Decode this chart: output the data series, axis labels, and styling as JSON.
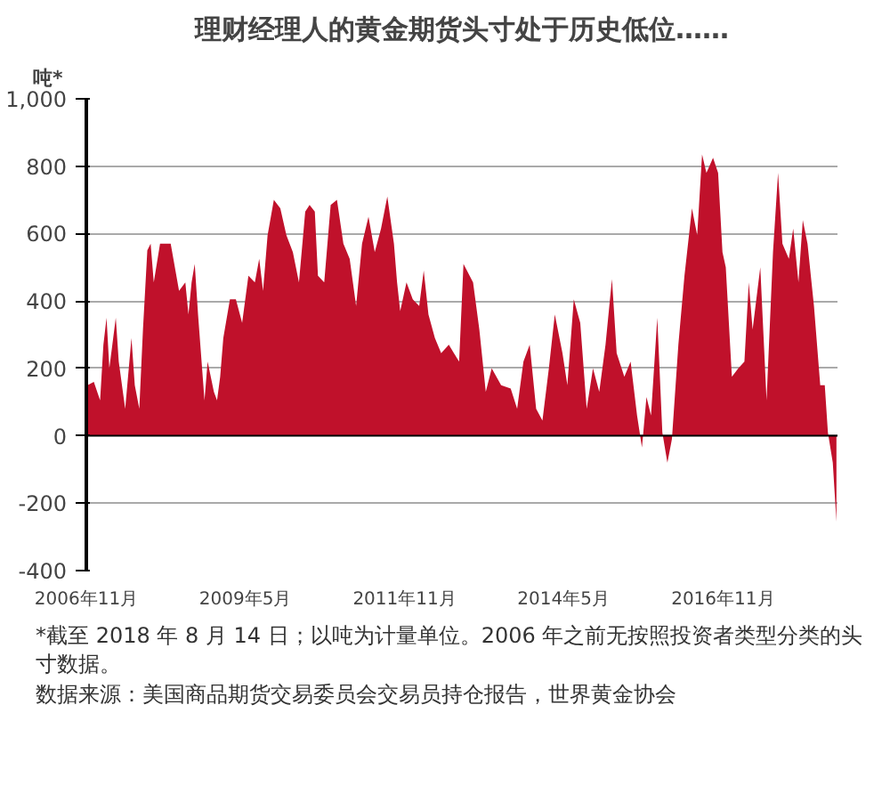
{
  "chart_data": {
    "type": "area",
    "title": "理财经理人的黄金期货头寸处于历史低位……",
    "ylabel": "吨*",
    "x": [
      "2006-11-08",
      "2006-12-14",
      "2007-01-19",
      "2007-02-07",
      "2007-02-25",
      "2007-03-13",
      "2007-04-19",
      "2007-05-06",
      "2007-06-12",
      "2007-07-18",
      "2007-08-06",
      "2007-09-01",
      "2007-09-22",
      "2007-10-17",
      "2007-11-05",
      "2007-11-23",
      "2007-12-29",
      "2008-02-05",
      "2008-02-28",
      "2008-04-16",
      "2008-05-22",
      "2008-06-09",
      "2008-06-27",
      "2008-07-15",
      "2008-08-03",
      "2008-09-09",
      "2008-09-27",
      "2008-11-02",
      "2008-11-20",
      "2008-12-08",
      "2008-12-26",
      "2009-02-02",
      "2009-03-08",
      "2009-04-13",
      "2009-05-19",
      "2009-06-25",
      "2009-07-20",
      "2009-08-11",
      "2009-09-06",
      "2009-10-12",
      "2009-11-18",
      "2009-12-23",
      "2010-01-29",
      "2010-03-05",
      "2010-04-10",
      "2010-05-05",
      "2010-06-04",
      "2010-06-22",
      "2010-07-28",
      "2010-09-03",
      "2010-10-09",
      "2010-11-15",
      "2010-12-21",
      "2011-01-27",
      "2011-03-02",
      "2011-04-08",
      "2011-05-14",
      "2011-06-19",
      "2011-07-25",
      "2011-09-01",
      "2011-09-19",
      "2011-10-07",
      "2011-11-12",
      "2011-12-18",
      "2012-01-24",
      "2012-02-19",
      "2012-03-17",
      "2012-04-23",
      "2012-05-29",
      "2012-07-12",
      "2012-09-09",
      "2012-10-04",
      "2012-11-28",
      "2013-01-03",
      "2013-02-09",
      "2013-03-15",
      "2013-05-08",
      "2013-07-02",
      "2013-08-08",
      "2013-09-13",
      "2013-10-19",
      "2013-11-25",
      "2013-12-31",
      "2014-02-06",
      "2014-03-12",
      "2014-04-25",
      "2014-05-23",
      "2014-06-29",
      "2014-08-05",
      "2014-09-11",
      "2014-10-17",
      "2014-11-22",
      "2014-12-28",
      "2015-02-03",
      "2015-03-02",
      "2015-04-15",
      "2015-05-21",
      "2015-06-27",
      "2015-07-25",
      "2015-08-20",
      "2015-09-15",
      "2015-10-21",
      "2015-11-19",
      "2015-12-18",
      "2016-01-13",
      "2016-02-19",
      "2016-03-25",
      "2016-05-07",
      "2016-06-06",
      "2016-07-04",
      "2016-07-29",
      "2016-09-05",
      "2016-10-04",
      "2016-10-29",
      "2016-11-17",
      "2016-12-22",
      "2017-01-28",
      "2017-03-04",
      "2017-03-29",
      "2017-04-20",
      "2017-06-03",
      "2017-07-09",
      "2017-08-15",
      "2017-09-13",
      "2017-10-08",
      "2017-11-14",
      "2017-12-09",
      "2018-01-08",
      "2018-02-02",
      "2018-03-01",
      "2018-04-07",
      "2018-05-13",
      "2018-06-08",
      "2018-06-26",
      "2018-07-24",
      "2018-08-14"
    ],
    "series": [
      {
        "color": "#c0112b",
        "values": [
          150,
          160,
          105,
          270,
          350,
          200,
          350,
          220,
          80,
          290,
          150,
          80,
          315,
          550,
          570,
          455,
          570,
          570,
          570,
          430,
          455,
          360,
          455,
          510,
          360,
          105,
          220,
          130,
          105,
          175,
          290,
          405,
          405,
          335,
          475,
          455,
          525,
          430,
          595,
          700,
          675,
          595,
          545,
          455,
          665,
          685,
          665,
          475,
          455,
          685,
          700,
          570,
          525,
          385,
          570,
          650,
          545,
          615,
          710,
          570,
          455,
          370,
          455,
          405,
          385,
          490,
          360,
          290,
          245,
          270,
          220,
          510,
          455,
          315,
          130,
          200,
          150,
          140,
          80,
          220,
          270,
          80,
          45,
          200,
          360,
          245,
          150,
          405,
          335,
          80,
          200,
          130,
          270,
          465,
          245,
          175,
          220,
          60,
          -35,
          115,
          60,
          350,
          10,
          -80,
          -10,
          270,
          475,
          675,
          595,
          835,
          780,
          825,
          780,
          545,
          500,
          175,
          200,
          220,
          455,
          315,
          500,
          105,
          545,
          780,
          570,
          525,
          615,
          455,
          640,
          570,
          385,
          150,
          150,
          10,
          -80,
          -255
        ]
      }
    ],
    "xlim": [
      "2006-11-01",
      "2018-08-20"
    ],
    "xticks": [
      {
        "value": "2006-11-01",
        "label": "2006年11月"
      },
      {
        "value": "2009-05-01",
        "label": "2009年5月"
      },
      {
        "value": "2011-11-01",
        "label": "2011年11月"
      },
      {
        "value": "2014-05-01",
        "label": "2014年5月"
      },
      {
        "value": "2016-11-01",
        "label": "2016年11月"
      }
    ],
    "ylim": [
      -400,
      1000
    ],
    "yticks": [
      -400,
      -200,
      0,
      200,
      400,
      600,
      800,
      {
        "value": 1000,
        "label": "1,000"
      }
    ],
    "grid": "y",
    "annotations": [
      "*截至 2018 年 8 月 14 日；以吨为计量单位。2006 年之前无按照投资者类型分类的头寸数据。",
      "数据来源：美国商品期货交易委员会交易员持仓报告，世界黄金协会"
    ]
  }
}
